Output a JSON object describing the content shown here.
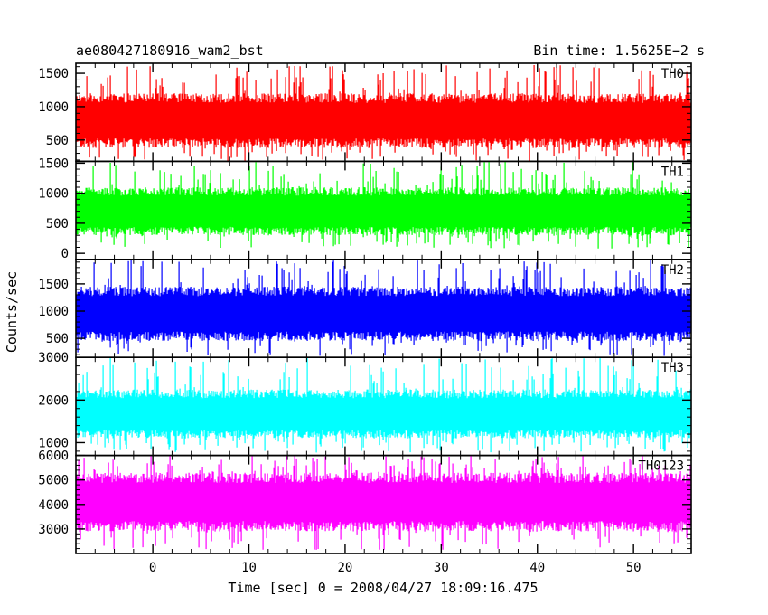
{
  "chart_data": {
    "type": "line",
    "title": "ae080427180916_wam2_bst",
    "bin_time_label": "Bin time: 1.5625E−2 s",
    "xlabel": "Time [sec] 0 = 2008/04/27 18:09:16.475",
    "ylabel": "Counts/sec",
    "xlim": [
      -8,
      56
    ],
    "x_ticks": [
      0,
      10,
      20,
      30,
      40,
      50
    ],
    "x_tick_labels": [
      "0",
      "10",
      "20",
      "30",
      "40",
      "50"
    ],
    "x_data_range": [
      -7.9,
      56
    ],
    "legend": "none; each panel is labelled at its top-right",
    "panels": [
      {
        "name": "TH0",
        "color": "#ff0000",
        "ylim": [
          180,
          1650
        ],
        "y_ticks": [
          500,
          1000,
          1500
        ],
        "y_tick_labels": [
          "500",
          "1000",
          "1500"
        ],
        "mean": 790,
        "core_low": 380,
        "core_high": 1200,
        "spike_low": 190,
        "spike_high": 1640
      },
      {
        "name": "TH1",
        "color": "#00ff00",
        "ylim": [
          -100,
          1530
        ],
        "y_ticks": [
          0,
          500,
          1000,
          1500
        ],
        "y_tick_labels": [
          "0",
          "500",
          "1000",
          "1500"
        ],
        "mean": 700,
        "core_low": 300,
        "core_high": 1100,
        "spike_low": 80,
        "spike_high": 1530
      },
      {
        "name": "TH2",
        "color": "#0000ff",
        "ylim": [
          150,
          1950
        ],
        "y_ticks": [
          500,
          1000,
          1500
        ],
        "y_tick_labels": [
          "500",
          "1000",
          "1500"
        ],
        "mean": 950,
        "core_low": 450,
        "core_high": 1450,
        "spike_low": 170,
        "spike_high": 1950
      },
      {
        "name": "TH3",
        "color": "#00ffff",
        "ylim": [
          700,
          3000
        ],
        "y_ticks": [
          1000,
          2000,
          3000
        ],
        "y_tick_labels": [
          "1000",
          "2000",
          "3000"
        ],
        "mean": 1650,
        "core_low": 1100,
        "core_high": 2250,
        "spike_low": 750,
        "spike_high": 3000
      },
      {
        "name": "TH0123",
        "color": "#ff00ff",
        "ylim": [
          2000,
          6000
        ],
        "y_ticks": [
          3000,
          4000,
          5000,
          6000
        ],
        "y_tick_labels": [
          "3000",
          "4000",
          "5000",
          "6000"
        ],
        "mean": 4100,
        "core_low": 2900,
        "core_high": 5300,
        "spike_low": 2150,
        "spike_high": 6000
      }
    ]
  }
}
